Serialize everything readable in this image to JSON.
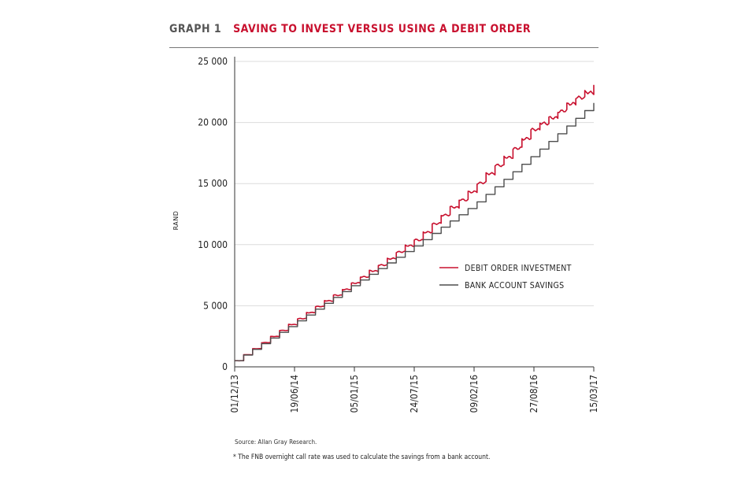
{
  "header": {
    "label": "GRAPH 1",
    "title": "SAVING TO INVEST VERSUS USING A DEBIT ORDER"
  },
  "footer": {
    "source": "Source: Allan Gray Research.",
    "note": "* The FNB overnight call rate was used to calculate the savings from a bank account."
  },
  "colors": {
    "debit": "#c8102e",
    "bank": "#4d4d4d",
    "grid": "#dcdcdc",
    "axis": "#333333"
  },
  "chart_data": {
    "type": "line",
    "title": "SAVING TO INVEST VERSUS USING A DEBIT ORDER",
    "ylabel": "RAND",
    "xlabel": "",
    "ylim": [
      0,
      25000
    ],
    "y_ticks": [
      0,
      5000,
      10000,
      15000,
      20000,
      25000
    ],
    "y_tick_labels": [
      "0",
      "5 000",
      "10 000",
      "15 000",
      "20 000",
      "25 000"
    ],
    "x_tick_labels": [
      "01/12/13",
      "19/06/14",
      "05/01/15",
      "24/07/15",
      "09/02/16",
      "27/08/16",
      "15/03/17"
    ],
    "grid": "horizontal",
    "legend_position": "center-right",
    "series": [
      {
        "name": "DEBIT ORDER INVESTMENT",
        "color": "#c8102e",
        "step": "monthly",
        "x": [
          "01/12/13",
          "19/06/14",
          "05/01/15",
          "24/07/15",
          "09/02/16",
          "27/08/16",
          "15/03/17"
        ],
        "values": [
          500,
          3800,
          7000,
          10400,
          14800,
          19600,
          23000
        ]
      },
      {
        "name": "BANK ACCOUNT SAVINGS",
        "color": "#4d4d4d",
        "step": "monthly",
        "x": [
          "01/12/13",
          "19/06/14",
          "05/01/15",
          "24/07/15",
          "09/02/16",
          "27/08/16",
          "15/03/17"
        ],
        "values": [
          500,
          3600,
          6800,
          9900,
          13300,
          17400,
          21600
        ]
      }
    ]
  }
}
